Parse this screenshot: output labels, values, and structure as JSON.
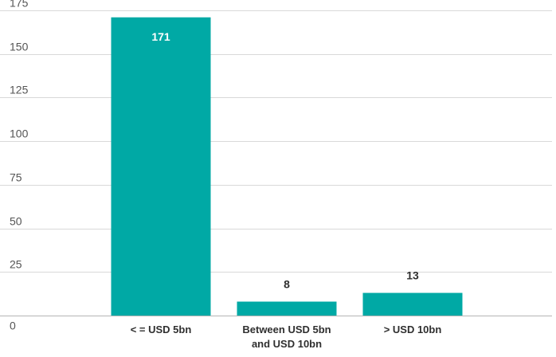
{
  "chart_data": {
    "type": "bar",
    "categories": [
      "< = USD 5bn",
      "Between USD 5bn\nand USD 10bn",
      "> USD 10bn"
    ],
    "values": [
      171,
      8,
      13
    ],
    "data_labels": [
      "171",
      "8",
      "13"
    ],
    "title": "",
    "xlabel": "",
    "ylabel": "",
    "ylim": [
      0,
      175
    ],
    "yticks": [
      0,
      25,
      50,
      75,
      100,
      125,
      150,
      175
    ],
    "ytick_labels": [
      "0",
      "25",
      "50",
      "75",
      "100",
      "125",
      "150",
      "175"
    ],
    "grid": true,
    "legend": "none",
    "colors": {
      "bar": "#00a9a5",
      "label_inside": "#ffffff",
      "label_outside": "#2f2f2f"
    }
  }
}
